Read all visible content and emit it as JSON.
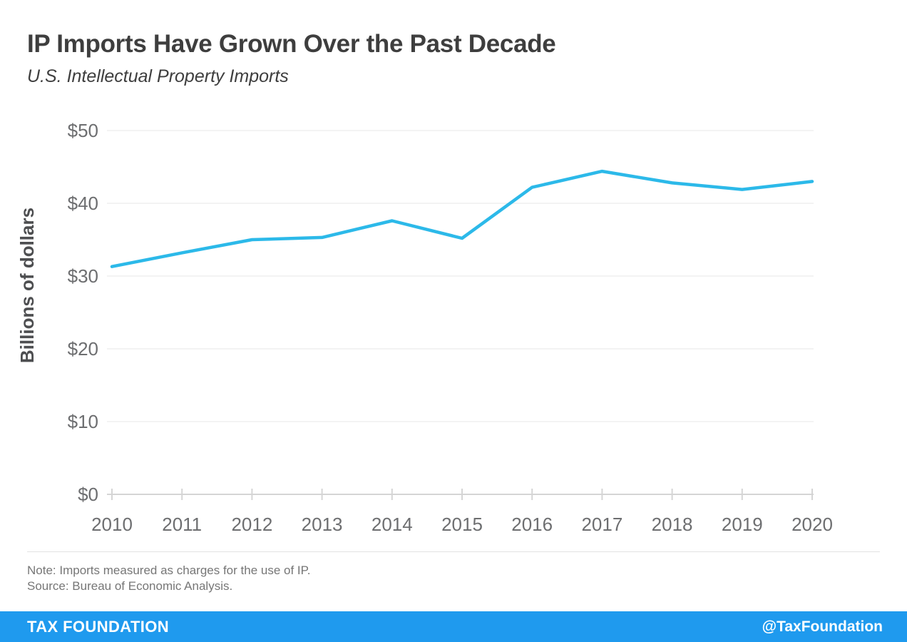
{
  "header": {
    "title": "IP Imports Have Grown Over the Past Decade",
    "subtitle": "U.S. Intellectual Property Imports"
  },
  "chart_data": {
    "type": "line",
    "title": "IP Imports Have Grown Over the Past Decade",
    "subtitle": "U.S. Intellectual Property Imports",
    "categories": [
      "2010",
      "2011",
      "2012",
      "2013",
      "2014",
      "2015",
      "2016",
      "2017",
      "2018",
      "2019",
      "2020"
    ],
    "series": [
      {
        "name": "U.S. intellectual property imports",
        "values": [
          31.3,
          33.2,
          35.0,
          35.3,
          37.6,
          35.2,
          42.2,
          44.4,
          42.8,
          41.9,
          43.0
        ]
      }
    ],
    "xlabel": "",
    "ylabel": "Billions of dollars",
    "ylim": [
      0,
      50
    ],
    "yticks": [
      0,
      10,
      20,
      30,
      40,
      50
    ],
    "ytick_prefix": "$",
    "grid": true,
    "legend": "none",
    "line_color": "#2cb9e9"
  },
  "notes": {
    "note": "Note: Imports measured as charges for the use of IP.",
    "source": "Source: Bureau of Economic Analysis."
  },
  "footer": {
    "brand": "TAX FOUNDATION",
    "handle": "@TaxFoundation",
    "bg_color": "#1f9aee",
    "text_color": "#ffffff"
  },
  "colors": {
    "line": "#2cb9e9",
    "grid": "#e7e7e7",
    "axis": "#d5d5d5",
    "tick_label": "#6d6e70",
    "axis_title": "#4d4e50",
    "title_text": "#3e3e3e",
    "note_text": "#767676",
    "divider": "#e3e3e3"
  }
}
